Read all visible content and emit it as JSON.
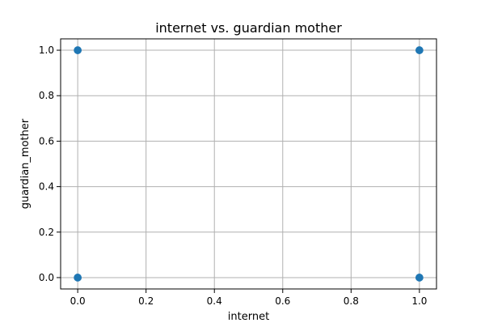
{
  "chart_data": {
    "type": "scatter",
    "title": "internet vs. guardian mother",
    "xlabel": "internet",
    "ylabel": "guardian_mother",
    "xlim": [
      -0.05,
      1.05
    ],
    "ylim": [
      -0.05,
      1.05
    ],
    "grid": true,
    "x_ticks": [
      0.0,
      0.2,
      0.4,
      0.6,
      0.8,
      1.0
    ],
    "y_ticks": [
      0.0,
      0.2,
      0.4,
      0.6,
      0.8,
      1.0
    ],
    "x_tick_labels": [
      "0.0",
      "0.2",
      "0.4",
      "0.6",
      "0.8",
      "1.0"
    ],
    "y_tick_labels": [
      "0.0",
      "0.2",
      "0.4",
      "0.6",
      "0.8",
      "1.0"
    ],
    "series": [
      {
        "name": "internet vs guardian_mother",
        "color": "#1f77b4",
        "points": [
          {
            "x": 0,
            "y": 0
          },
          {
            "x": 0,
            "y": 1
          },
          {
            "x": 1,
            "y": 0
          },
          {
            "x": 1,
            "y": 1
          }
        ]
      }
    ]
  },
  "colors": {
    "point": "#1f77b4",
    "grid": "#b0b0b0",
    "axis": "#000000"
  }
}
